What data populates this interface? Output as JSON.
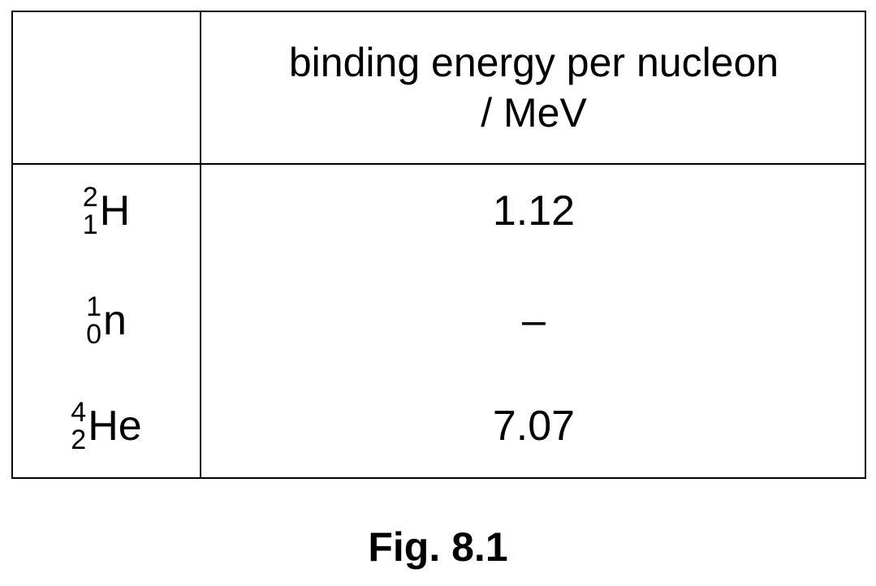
{
  "table": {
    "header": {
      "line1": "binding energy per nucleon",
      "line2": "/ MeV"
    },
    "rows": [
      {
        "mass_number": "2",
        "atomic_number": "1",
        "symbol": "H",
        "value": "1.12"
      },
      {
        "mass_number": "1",
        "atomic_number": "0",
        "symbol": "n",
        "value": "–"
      },
      {
        "mass_number": "4",
        "atomic_number": "2",
        "symbol": "He",
        "value": "7.07"
      }
    ]
  },
  "caption": "Fig. 8.1"
}
